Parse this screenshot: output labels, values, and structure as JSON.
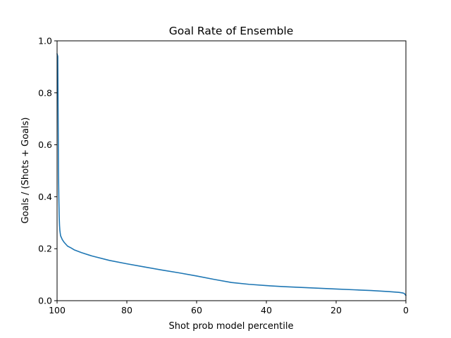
{
  "chart_data": {
    "type": "line",
    "title": "Goal Rate of Ensemble",
    "xlabel": "Shot prob model percentile",
    "ylabel": "Goals / (Shots + Goals)",
    "xlim": [
      100,
      0
    ],
    "ylim": [
      0,
      1.0
    ],
    "x_ticks": [
      100,
      80,
      60,
      40,
      20,
      0
    ],
    "y_ticks": [
      0.0,
      0.2,
      0.4,
      0.6,
      0.8,
      1.0
    ],
    "x_tick_labels": [
      "100",
      "80",
      "60",
      "40",
      "20",
      "0"
    ],
    "y_tick_labels": [
      "0.0",
      "0.2",
      "0.4",
      "0.6",
      "0.8",
      "1.0"
    ],
    "grid": false,
    "series": [
      {
        "color": "#1f77b4",
        "x": [
          100,
          99.8,
          99.6,
          99.5,
          99.4,
          99.3,
          99.2,
          99,
          98.5,
          98,
          97,
          96,
          95,
          93,
          90,
          85,
          80,
          75,
          70,
          65,
          60,
          55,
          50,
          45,
          40,
          35,
          30,
          25,
          20,
          15,
          10,
          5,
          2,
          1,
          0.5,
          0
        ],
        "y": [
          0.95,
          0.94,
          0.5,
          0.4,
          0.33,
          0.29,
          0.27,
          0.25,
          0.235,
          0.225,
          0.21,
          0.203,
          0.195,
          0.185,
          0.172,
          0.155,
          0.142,
          0.13,
          0.118,
          0.107,
          0.095,
          0.082,
          0.07,
          0.063,
          0.058,
          0.054,
          0.051,
          0.048,
          0.045,
          0.042,
          0.039,
          0.035,
          0.032,
          0.03,
          0.028,
          0.02
        ]
      }
    ]
  }
}
